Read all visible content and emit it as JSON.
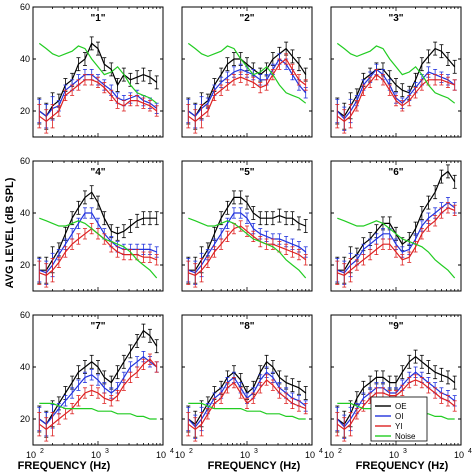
{
  "figure": {
    "ylabel": "AVG LEVEL (dB SPL)",
    "xlabel": "FREQUENCY (Hz)",
    "xticks": [
      "10",
      "10",
      "10"
    ],
    "xtick_exponents": [
      "2",
      "3",
      "4"
    ],
    "yticks": [
      "20",
      "40",
      "60"
    ]
  },
  "legend": {
    "placement": "bottom-right of panel 9",
    "entries": [
      {
        "label": "OE",
        "color": "#000000"
      },
      {
        "label": "OI",
        "color": "#2233dd"
      },
      {
        "label": "YI",
        "color": "#dd2222"
      },
      {
        "label": "Noise",
        "color": "#22cc22"
      }
    ]
  },
  "chart_data": {
    "type": "line",
    "xscale": "log",
    "xlim": [
      100,
      10000
    ],
    "ylim": [
      10,
      60
    ],
    "x": [
      125,
      160,
      200,
      250,
      315,
      400,
      500,
      630,
      800,
      1000,
      1250,
      1600,
      2000,
      2500,
      3150,
      4000,
      5000,
      6300,
      8000
    ],
    "series_names": [
      "OE",
      "OI",
      "YI",
      "Noise"
    ],
    "panels": [
      {
        "label": "\"1\"",
        "series": {
          "OE": [
            20,
            18,
            22,
            24,
            30,
            32,
            38,
            40,
            46,
            44,
            38,
            36,
            30,
            34,
            32,
            33,
            34,
            33,
            31
          ],
          "OI": [
            20,
            18,
            21,
            22,
            28,
            30,
            32,
            34,
            34,
            32,
            30,
            28,
            25,
            24,
            25,
            26,
            24,
            23,
            21
          ],
          "YI": [
            18,
            16,
            18,
            20,
            26,
            28,
            30,
            32,
            32,
            31,
            29,
            26,
            23,
            22,
            24,
            24,
            23,
            22,
            20
          ],
          "Noise": [
            46,
            44,
            42,
            41,
            42,
            43,
            45,
            44,
            40,
            37,
            34,
            35,
            37,
            34,
            30,
            27,
            26,
            25,
            23
          ]
        }
      },
      {
        "label": "\"2\"",
        "series": {
          "OE": [
            20,
            18,
            22,
            24,
            30,
            34,
            38,
            40,
            40,
            38,
            36,
            34,
            36,
            40,
            42,
            44,
            41,
            38,
            34
          ],
          "OI": [
            20,
            18,
            21,
            23,
            28,
            31,
            33,
            35,
            36,
            35,
            34,
            32,
            32,
            36,
            40,
            38,
            34,
            30,
            27
          ],
          "YI": [
            18,
            16,
            18,
            20,
            26,
            28,
            30,
            32,
            33,
            32,
            31,
            29,
            30,
            34,
            38,
            40,
            36,
            32,
            30
          ],
          "Noise": [
            46,
            44,
            42,
            41,
            42,
            43,
            45,
            44,
            40,
            37,
            34,
            35,
            37,
            34,
            30,
            27,
            26,
            25,
            23
          ]
        }
      },
      {
        "label": "\"3\"",
        "series": {
          "OE": [
            20,
            18,
            22,
            26,
            32,
            34,
            36,
            36,
            33,
            30,
            28,
            27,
            32,
            38,
            41,
            44,
            43,
            40,
            37
          ],
          "OI": [
            20,
            17,
            20,
            24,
            30,
            33,
            36,
            34,
            30,
            25,
            23,
            26,
            29,
            32,
            35,
            34,
            33,
            32,
            30
          ],
          "YI": [
            18,
            16,
            18,
            22,
            28,
            31,
            34,
            32,
            28,
            24,
            22,
            24,
            27,
            30,
            32,
            32,
            32,
            31,
            30
          ],
          "Noise": [
            46,
            44,
            42,
            41,
            42,
            43,
            45,
            44,
            40,
            37,
            34,
            35,
            37,
            34,
            30,
            27,
            26,
            25,
            23
          ]
        }
      },
      {
        "label": "\"4\"",
        "series": {
          "OE": [
            18,
            18,
            22,
            26,
            32,
            38,
            42,
            46,
            48,
            44,
            38,
            33,
            32,
            33,
            35,
            37,
            38,
            38,
            38
          ],
          "OI": [
            18,
            17,
            20,
            24,
            28,
            32,
            36,
            40,
            40,
            36,
            32,
            29,
            27,
            26,
            26,
            26,
            26,
            26,
            25
          ],
          "YI": [
            17,
            16,
            18,
            21,
            25,
            28,
            30,
            32,
            34,
            32,
            30,
            27,
            25,
            24,
            24,
            24,
            23,
            23,
            22
          ],
          "Noise": [
            38,
            37,
            36,
            35,
            35,
            36,
            37,
            36,
            34,
            32,
            30,
            29,
            28,
            27,
            25,
            22,
            20,
            18,
            15
          ]
        }
      },
      {
        "label": "\"5\"",
        "series": {
          "OE": [
            18,
            18,
            22,
            26,
            32,
            38,
            42,
            46,
            46,
            44,
            40,
            38,
            38,
            38,
            39,
            38,
            38,
            36,
            35
          ],
          "OI": [
            18,
            17,
            20,
            24,
            28,
            32,
            36,
            40,
            40,
            38,
            34,
            32,
            31,
            30,
            30,
            29,
            28,
            27,
            25
          ],
          "YI": [
            17,
            16,
            18,
            21,
            25,
            28,
            31,
            34,
            35,
            33,
            31,
            29,
            28,
            28,
            27,
            26,
            25,
            24,
            22
          ],
          "Noise": [
            38,
            37,
            36,
            35,
            35,
            36,
            37,
            36,
            34,
            32,
            30,
            29,
            28,
            27,
            25,
            22,
            20,
            18,
            15
          ]
        }
      },
      {
        "label": "\"6\"",
        "series": {
          "OE": [
            18,
            18,
            22,
            24,
            28,
            30,
            33,
            36,
            36,
            32,
            28,
            30,
            34,
            40,
            44,
            48,
            54,
            56,
            52
          ],
          "OI": [
            18,
            17,
            20,
            22,
            26,
            28,
            30,
            32,
            32,
            28,
            25,
            26,
            30,
            35,
            38,
            40,
            42,
            44,
            42
          ],
          "YI": [
            17,
            16,
            18,
            20,
            22,
            24,
            26,
            28,
            28,
            25,
            22,
            23,
            27,
            32,
            35,
            37,
            40,
            42,
            41
          ],
          "Noise": [
            38,
            37,
            36,
            35,
            35,
            36,
            37,
            36,
            34,
            32,
            30,
            29,
            28,
            27,
            25,
            22,
            20,
            18,
            15
          ]
        }
      },
      {
        "label": "\"7\"",
        "series": {
          "OE": [
            20,
            18,
            22,
            26,
            30,
            34,
            38,
            40,
            42,
            40,
            36,
            34,
            38,
            42,
            46,
            50,
            54,
            52,
            48
          ],
          "OI": [
            20,
            18,
            21,
            24,
            27,
            30,
            33,
            36,
            37,
            35,
            32,
            30,
            32,
            36,
            40,
            42,
            44,
            42,
            40
          ],
          "YI": [
            18,
            16,
            18,
            20,
            22,
            24,
            27,
            30,
            31,
            30,
            28,
            27,
            29,
            33,
            36,
            38,
            41,
            43,
            40
          ],
          "Noise": [
            26,
            26,
            26,
            25,
            24,
            24,
            24,
            24,
            24,
            23,
            23,
            23,
            22,
            22,
            22,
            21,
            21,
            20,
            20
          ]
        }
      },
      {
        "label": "\"8\"",
        "series": {
          "OE": [
            20,
            18,
            22,
            26,
            30,
            32,
            36,
            38,
            35,
            30,
            32,
            38,
            42,
            40,
            36,
            34,
            33,
            32,
            30
          ],
          "OI": [
            20,
            17,
            20,
            24,
            28,
            30,
            34,
            36,
            32,
            28,
            30,
            35,
            38,
            36,
            32,
            30,
            28,
            27,
            25
          ],
          "YI": [
            18,
            16,
            18,
            22,
            26,
            28,
            32,
            34,
            30,
            26,
            28,
            32,
            35,
            33,
            30,
            28,
            26,
            25,
            24
          ],
          "Noise": [
            26,
            26,
            26,
            25,
            24,
            24,
            24,
            24,
            24,
            23,
            23,
            23,
            22,
            22,
            22,
            21,
            21,
            20,
            20
          ]
        }
      },
      {
        "label": "\"9\"",
        "series": {
          "OE": [
            20,
            18,
            22,
            28,
            32,
            34,
            36,
            36,
            34,
            34,
            38,
            42,
            44,
            42,
            40,
            38,
            37,
            36,
            34
          ],
          "OI": [
            20,
            17,
            20,
            24,
            28,
            30,
            32,
            32,
            30,
            30,
            33,
            36,
            38,
            36,
            34,
            32,
            30,
            29,
            27
          ],
          "YI": [
            18,
            16,
            18,
            22,
            25,
            28,
            30,
            30,
            29,
            29,
            31,
            34,
            35,
            34,
            32,
            30,
            28,
            27,
            25
          ],
          "Noise": [
            26,
            26,
            26,
            25,
            24,
            24,
            24,
            24,
            24,
            23,
            23,
            23,
            22,
            22,
            22,
            21,
            21,
            20,
            20
          ]
        }
      }
    ]
  }
}
